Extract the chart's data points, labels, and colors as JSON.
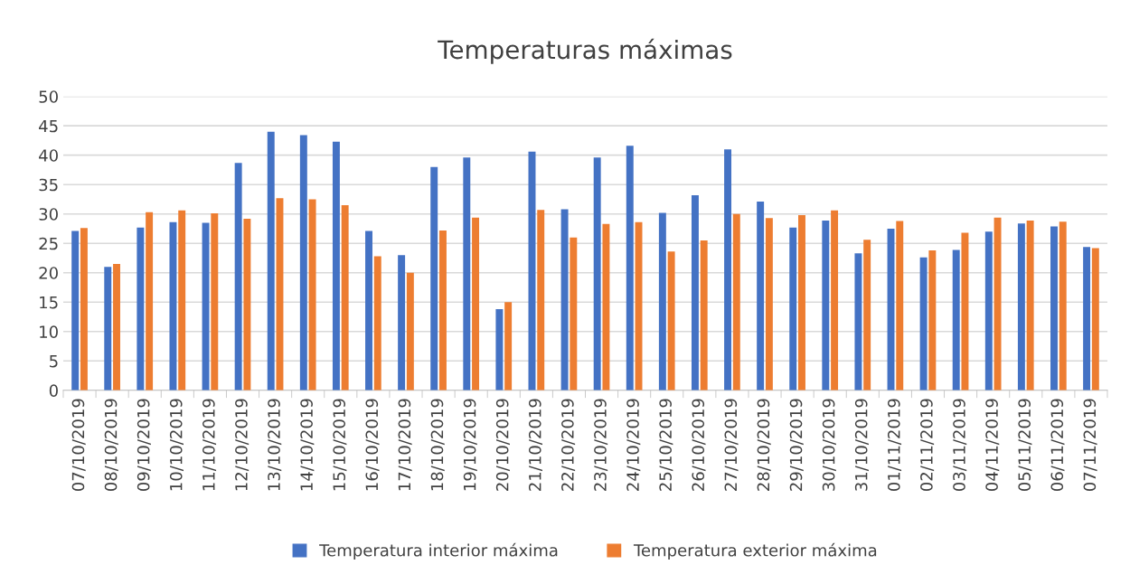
{
  "chart_data": {
    "type": "bar",
    "title": "Temperaturas máximas",
    "categories": [
      "07/10/2019",
      "08/10/2019",
      "09/10/2019",
      "10/10/2019",
      "11/10/2019",
      "12/10/2019",
      "13/10/2019",
      "14/10/2019",
      "15/10/2019",
      "16/10/2019",
      "17/10/2019",
      "18/10/2019",
      "19/10/2019",
      "20/10/2019",
      "21/10/2019",
      "22/10/2019",
      "23/10/2019",
      "24/10/2019",
      "25/10/2019",
      "26/10/2019",
      "27/10/2019",
      "28/10/2019",
      "29/10/2019",
      "30/10/2019",
      "31/10/2019",
      "01/11/2019",
      "02/11/2019",
      "03/11/2019",
      "04/11/2019",
      "05/11/2019",
      "06/11/2019",
      "07/11/2019"
    ],
    "series": [
      {
        "name": "Temperatura interior máxima",
        "color": "#4472c4",
        "values": [
          27.1,
          21.0,
          27.7,
          28.6,
          28.5,
          38.7,
          44.0,
          43.4,
          42.3,
          27.1,
          23.0,
          38.0,
          39.6,
          13.8,
          40.6,
          30.8,
          39.6,
          41.6,
          30.2,
          33.2,
          41.0,
          32.1,
          27.7,
          28.9,
          23.3,
          27.5,
          22.6,
          23.9,
          27.0,
          28.4,
          27.9,
          24.4
        ]
      },
      {
        "name": "Temperatura exterior máxima",
        "color": "#ed7d31",
        "values": [
          27.6,
          21.5,
          30.3,
          30.6,
          30.1,
          29.2,
          32.7,
          32.5,
          31.5,
          22.8,
          20.0,
          27.2,
          29.4,
          15.0,
          30.7,
          26.0,
          28.3,
          28.6,
          23.6,
          25.5,
          30.0,
          29.3,
          29.8,
          30.6,
          25.6,
          28.8,
          23.8,
          26.8,
          29.4,
          28.9,
          28.7,
          24.2
        ]
      }
    ],
    "ylim": [
      0,
      50
    ],
    "yticks": [
      0,
      5,
      10,
      15,
      20,
      25,
      30,
      35,
      40,
      45,
      50
    ],
    "grid": "y",
    "legend": "bottom"
  }
}
